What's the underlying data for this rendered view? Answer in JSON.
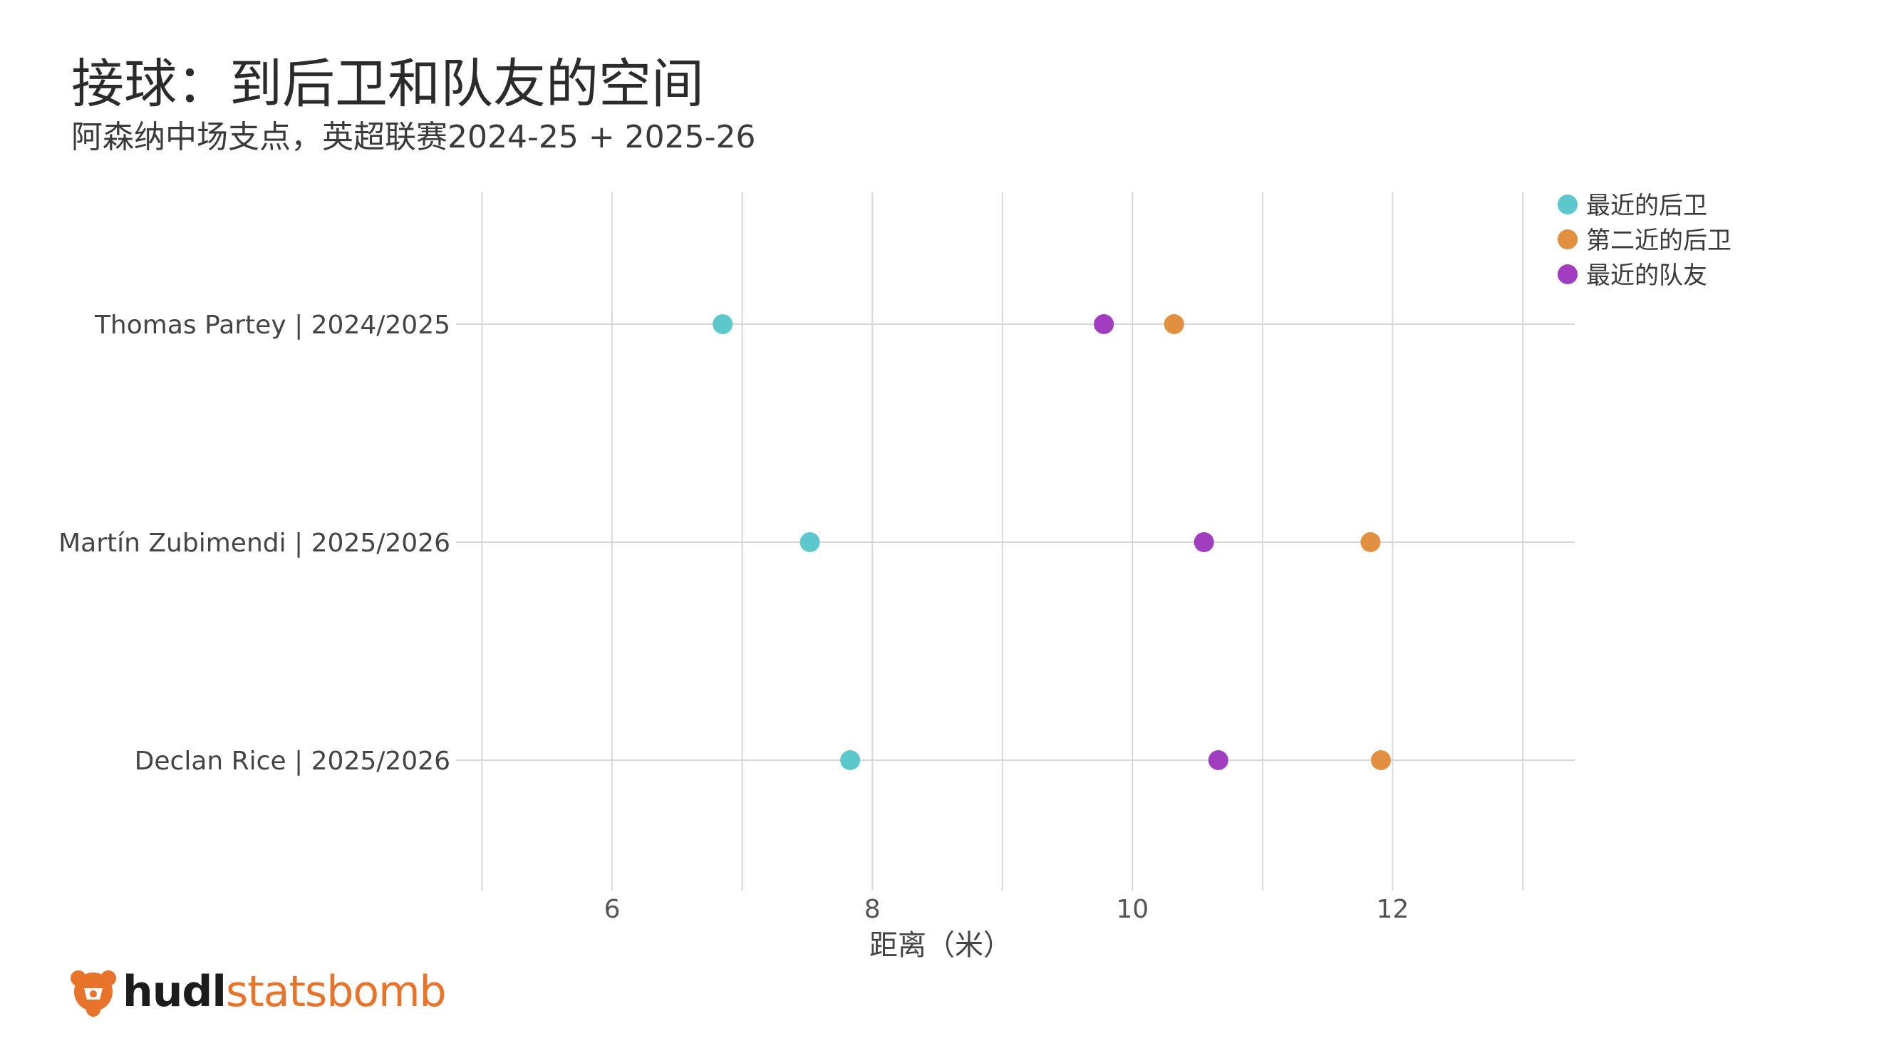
{
  "header": {
    "title": "接球：到后卫和队友的空间",
    "subtitle": "阿森纳中场支点，英超联赛2024-25 + 2025-26"
  },
  "brand": {
    "logo_part1": "hudl",
    "logo_part2": "statsbomb",
    "accent_color": "#e8742c"
  },
  "chart_data": {
    "type": "scatter",
    "title": "接球：到后卫和队友的空间",
    "subtitle": "阿森纳中场支点，英超联赛2024-25 + 2025-26",
    "xlabel": "距离（米）",
    "ylabel": "",
    "xlim": [
      4.8,
      13.4
    ],
    "xticks": [
      6,
      8,
      10,
      12
    ],
    "minor_gridlines": [
      5,
      7,
      9,
      11,
      13
    ],
    "grid": true,
    "legend_position": "top-right",
    "categories": [
      "Thomas Partey | 2024/2025",
      "Martín Zubimendi | 2025/2026",
      "Declan Rice | 2025/2026"
    ],
    "series": [
      {
        "name": "最近的后卫",
        "color": "#5cc8cc",
        "values": [
          6.85,
          7.52,
          7.83
        ]
      },
      {
        "name": "第二近的后卫",
        "color": "#e09040",
        "values": [
          10.32,
          11.83,
          11.91
        ]
      },
      {
        "name": "最近的队友",
        "color": "#a03cbe",
        "values": [
          9.78,
          10.55,
          10.66
        ]
      }
    ]
  }
}
